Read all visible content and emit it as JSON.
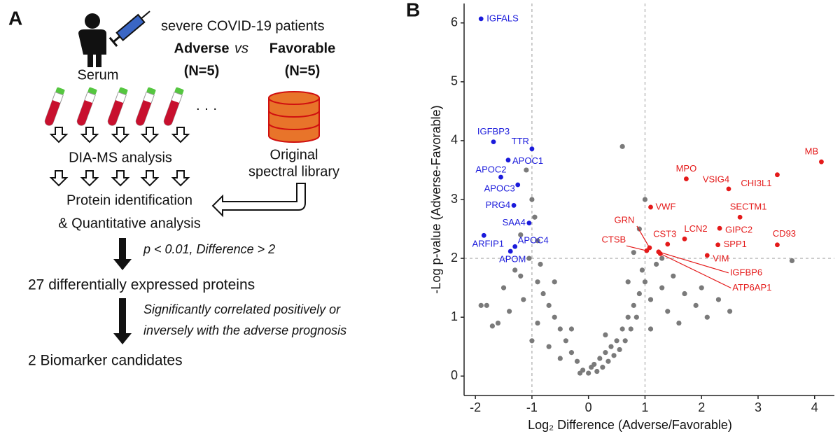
{
  "panel_a": {
    "label": "A",
    "header": "severe COVID-19 patients",
    "group_1": "Adverse",
    "vs": "vs",
    "group_2": "Favorable",
    "n_1": "(N=5)",
    "n_2": "(N=5)",
    "sample": "Serum",
    "ellipsis": "· · ·",
    "step_1": "DIA-MS analysis",
    "library": [
      "Original",
      "spectral library"
    ],
    "step_2": [
      "Protein identification",
      "& Quantitative analysis"
    ],
    "filter_1": "p < 0.01, Difference > 2",
    "result_1": "27 differentially expressed proteins",
    "filter_2": [
      "Significantly correlated positively or",
      "inversely with the adverse prognosis"
    ],
    "result_2": "2 Biomarker candidates"
  },
  "chart_data": {
    "type": "scatter",
    "panel_label": "B",
    "xlabel": "Log₂ Difference (Adverse/Favorable)",
    "ylabel": "-Log p-value (Adverse-Favorable)",
    "xlim": [
      -2.2,
      4.35
    ],
    "ylim": [
      -0.33,
      6.33
    ],
    "xticks": [
      -2,
      -1,
      0,
      1,
      2,
      3,
      4
    ],
    "yticks": [
      0,
      1,
      2,
      3,
      4,
      5,
      6
    ],
    "thresholds": {
      "x": [
        -1,
        1
      ],
      "y": 2
    },
    "series": [
      {
        "color": "#7a7a7a",
        "x": [
          -1.1,
          -1.0,
          -0.95,
          -1.2,
          -0.9,
          -1.05,
          -0.85,
          -1.3,
          -0.9,
          -1.5,
          -1.15,
          -0.8,
          -0.7,
          -1.4,
          -1.6,
          -1.8,
          -0.6,
          -0.5,
          -0.9,
          -1.0,
          -0.4,
          -0.7,
          -0.3,
          -0.5,
          -0.2,
          -0.1,
          0,
          0.05,
          0.1,
          -0.15,
          0.2,
          0.15,
          0.3,
          0.25,
          0.4,
          0.35,
          0.5,
          0.45,
          0.6,
          0.55,
          0.7,
          0.65,
          0.8,
          0.75,
          0.9,
          0.85,
          1.0,
          0.95,
          1.1,
          1.2,
          0.8,
          0.9,
          0.6,
          1.0,
          1.3,
          1.5,
          1.7,
          1.9,
          2.1,
          2.3,
          1.4,
          1.6,
          2.0,
          2.5,
          3.6,
          -1.9,
          -1.7,
          1.1,
          0.3,
          -0.3,
          -0.6,
          -1.2,
          1.3,
          0.7
        ],
        "values": [
          3.5,
          3.0,
          2.7,
          2.4,
          2.3,
          2.0,
          1.9,
          1.8,
          1.6,
          1.5,
          1.3,
          1.4,
          1.2,
          1.1,
          0.9,
          1.2,
          1.0,
          0.8,
          0.9,
          0.6,
          0.6,
          0.5,
          0.4,
          0.3,
          0.25,
          0.1,
          0.05,
          0.15,
          0.2,
          0.05,
          0.3,
          0.08,
          0.4,
          0.15,
          0.5,
          0.25,
          0.6,
          0.35,
          0.8,
          0.45,
          1.0,
          0.6,
          1.2,
          0.8,
          1.4,
          1.0,
          1.6,
          1.8,
          1.3,
          1.9,
          2.1,
          2.5,
          3.9,
          3.0,
          1.5,
          1.7,
          1.4,
          1.2,
          1.0,
          1.3,
          1.1,
          0.9,
          1.5,
          1.1,
          1.96,
          1.2,
          0.85,
          0.8,
          0.7,
          0.8,
          1.6,
          1.7,
          2.0,
          1.6
        ]
      },
      {
        "color": "#1a1adb",
        "labels": [
          "IGFALS",
          "IGFBP3",
          "TTR",
          "APOC2",
          "APOC1",
          "APOC3",
          "PRG4",
          "SAA4",
          "ARFIP1",
          "APOC4",
          "APOM"
        ],
        "x": [
          -1.9,
          -1.68,
          -1.0,
          -1.55,
          -1.42,
          -1.25,
          -1.32,
          -1.05,
          -1.85,
          -1.3,
          -1.38
        ],
        "values": [
          6.07,
          3.98,
          3.86,
          3.38,
          3.67,
          3.25,
          2.9,
          2.6,
          2.39,
          2.2,
          2.12
        ]
      },
      {
        "color": "#e41a1a",
        "labels": [
          "MB",
          "CHI3L1",
          "MPO",
          "VSIG4",
          "VWF",
          "SECTM1",
          "GRN",
          "CST3",
          "LCN2",
          "GIPC2",
          "CD93",
          "CTSB",
          "SPP1",
          "VIM",
          "IGFBP6",
          "ATP6AP1"
        ],
        "x": [
          4.12,
          3.34,
          1.73,
          2.48,
          1.1,
          2.68,
          1.08,
          1.4,
          1.7,
          2.32,
          3.34,
          1.03,
          2.29,
          2.1,
          1.24,
          1.27
        ],
        "values": [
          3.64,
          3.42,
          3.35,
          3.18,
          2.87,
          2.7,
          2.18,
          2.24,
          2.33,
          2.51,
          2.23,
          2.13,
          2.23,
          2.05,
          2.11,
          2.08
        ]
      }
    ]
  }
}
